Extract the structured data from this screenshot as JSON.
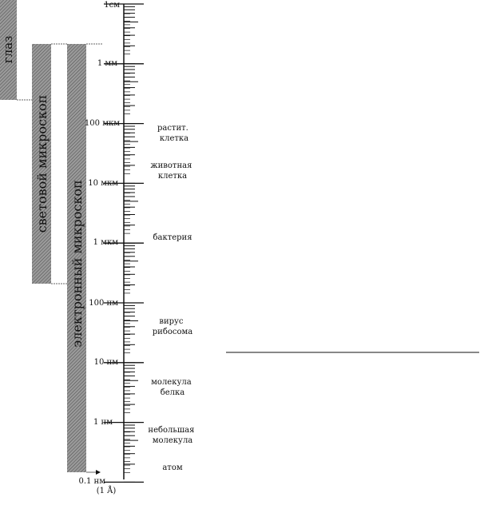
{
  "instruments": [
    {
      "label": "глаз"
    },
    {
      "label": "световой микроскоп"
    },
    {
      "label": "электронный микроскоп"
    }
  ],
  "scale_labels": [
    "1см",
    "1 мм",
    "100 мкм",
    "10 мкм",
    "1 мкм",
    "100 нм",
    "10 нм",
    "1 нм",
    "0.1 нм",
    "(1 Å)"
  ],
  "objects": [
    {
      "lines": [
        "растит.",
        "клетка"
      ]
    },
    {
      "lines": [
        "животная",
        "клетка"
      ]
    },
    {
      "lines": [
        "бактерия"
      ]
    },
    {
      "lines": [
        "вирус",
        "рибосома"
      ]
    },
    {
      "lines": [
        "молекула",
        "белка"
      ]
    },
    {
      "lines": [
        "небольшая",
        "молекула"
      ]
    },
    {
      "lines": [
        "атом"
      ]
    }
  ],
  "colors": {
    "ink": "#111111",
    "band": "#8c8c8c",
    "hatch": "#555555"
  }
}
